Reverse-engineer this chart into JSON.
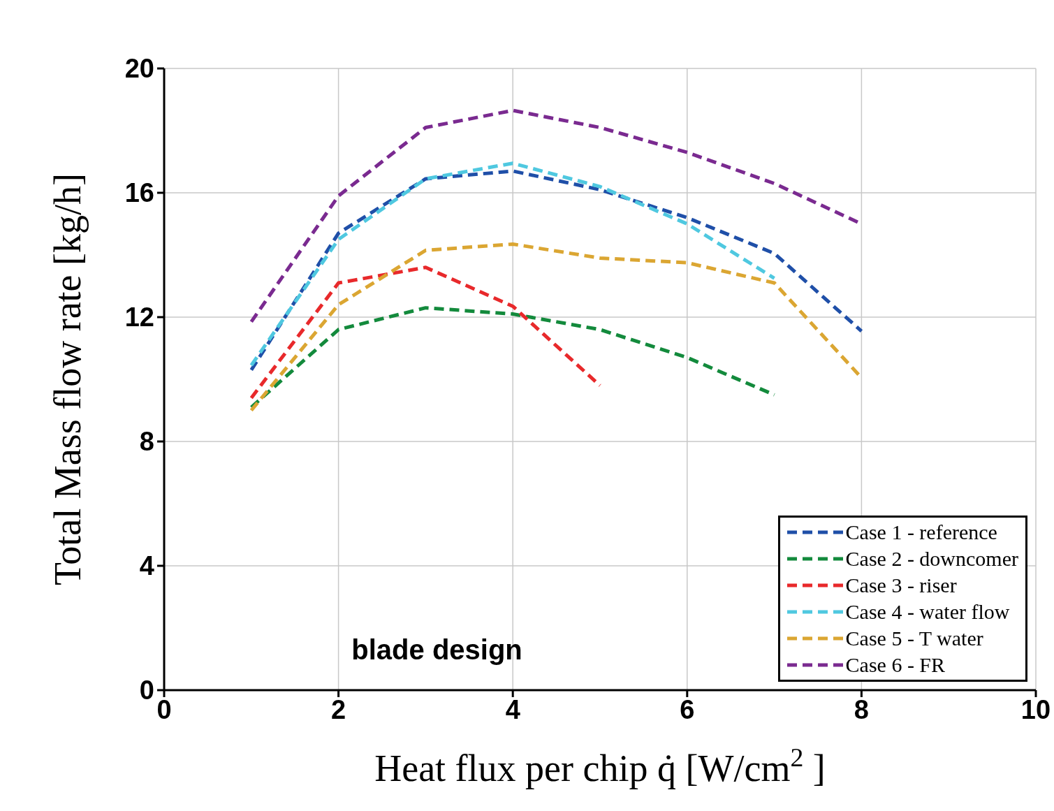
{
  "chart_data": {
    "type": "line",
    "xlabel": "Heat flux per chip q̇ [W/cm$^{2}$]",
    "ylabel": "Total Mass flow rate [kg/h]",
    "x": [
      1,
      2,
      3,
      4,
      5,
      6,
      7,
      8
    ],
    "xlim": [
      0,
      10
    ],
    "xticks": [
      0,
      2,
      4,
      6,
      8,
      10
    ],
    "ylim": [
      0,
      20
    ],
    "yticks": [
      0,
      4,
      8,
      12,
      16,
      20
    ],
    "grid": true,
    "legend": "bottom right",
    "line_style": "dashed",
    "marker": "none",
    "annotations": [
      "blade design"
    ],
    "series": [
      {
        "name": "Case 1 - reference",
        "color": "#1f4fa8",
        "values": [
          10.3,
          14.7,
          16.45,
          16.7,
          16.1,
          15.2,
          14.05,
          11.55
        ]
      },
      {
        "name": "Case 2 - downcomer",
        "color": "#138a3c",
        "values": [
          9.1,
          11.6,
          12.3,
          12.1,
          11.6,
          10.7,
          9.5,
          null
        ]
      },
      {
        "name": "Case 3 - riser",
        "color": "#e8292b",
        "values": [
          9.4,
          13.1,
          13.6,
          12.35,
          9.8,
          null,
          null,
          null
        ]
      },
      {
        "name": "Case 4 - water flow",
        "color": "#4fc8e0",
        "values": [
          10.45,
          14.5,
          16.45,
          16.95,
          16.2,
          15.0,
          13.25,
          null
        ]
      },
      {
        "name": "Case 5 - T water",
        "color": "#dba632",
        "values": [
          9.0,
          12.4,
          14.15,
          14.35,
          13.9,
          13.75,
          13.1,
          10.05
        ]
      },
      {
        "name": "Case 6 - FR",
        "color": "#7a2a90",
        "values": [
          11.85,
          15.9,
          18.1,
          18.65,
          18.1,
          17.3,
          16.3,
          15.0
        ]
      }
    ]
  }
}
